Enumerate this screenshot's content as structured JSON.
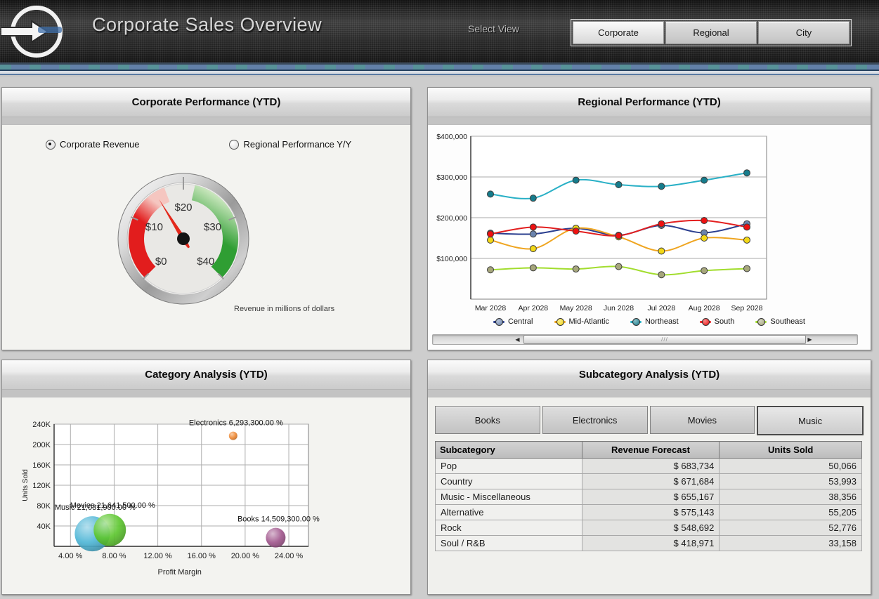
{
  "header": {
    "title": "Corporate Sales Overview",
    "select_view_label": "Select View",
    "view_buttons": [
      {
        "label": "Corporate",
        "selected": true
      },
      {
        "label": "Regional",
        "selected": false
      },
      {
        "label": "City",
        "selected": false
      }
    ]
  },
  "corporate_panel": {
    "title": "Corporate Performance (YTD)",
    "radios": [
      {
        "label": "Corporate Revenue",
        "selected": true
      },
      {
        "label": "Regional Performance Y/Y",
        "selected": false
      }
    ],
    "caption": "Revenue in millions of dollars"
  },
  "regional_panel": {
    "title": "Regional Performance (YTD)"
  },
  "category_panel": {
    "title": "Category Analysis (YTD)"
  },
  "subcategory_panel": {
    "title": "Subcategory Analysis (YTD)",
    "tabs": [
      {
        "label": "Books",
        "selected": false
      },
      {
        "label": "Electronics",
        "selected": false
      },
      {
        "label": "Movies",
        "selected": false
      },
      {
        "label": "Music",
        "selected": true
      }
    ],
    "table": {
      "columns": [
        "Subcategory",
        "Revenue Forecast",
        "Units Sold"
      ],
      "rows": [
        [
          "Pop",
          "$ 683,734",
          "50,066"
        ],
        [
          "Country",
          "$ 671,684",
          "53,993"
        ],
        [
          "Music - Miscellaneous",
          "$ 655,167",
          "38,356"
        ],
        [
          "Alternative",
          "$ 575,143",
          "55,205"
        ],
        [
          "Rock",
          "$ 548,692",
          "52,776"
        ],
        [
          "Soul / R&B",
          "$ 418,971",
          "33,158"
        ]
      ]
    }
  },
  "chart_data": [
    {
      "type": "gauge",
      "title": "Corporate Revenue",
      "min": 0,
      "max": 40,
      "value": 15.3,
      "tick_labels": [
        "$0",
        "$10",
        "$20",
        "$30",
        "$40"
      ],
      "red_zone": [
        0,
        14
      ],
      "green_zone": [
        23,
        40
      ],
      "caption": "Revenue in millions of dollars",
      "colors": {
        "red": "#e21d1d",
        "red_fade": "#f5c6c0",
        "green": "#2f9e33",
        "green_fade": "#d9eecb",
        "needle": "#e3291c"
      }
    },
    {
      "type": "line",
      "title": "Regional Performance (YTD)",
      "x": [
        "Mar 2028",
        "Apr 2028",
        "May 2028",
        "Jun 2028",
        "Jul 2028",
        "Aug 2028",
        "Sep 2028"
      ],
      "ylim": [
        0,
        400000
      ],
      "ytick_labels": [
        "$100,000",
        "$200,000",
        "$300,000",
        "$400,000"
      ],
      "ytick_values": [
        100000,
        200000,
        300000,
        400000
      ],
      "grid": "horizontal",
      "legend_position": "bottom",
      "series": [
        {
          "name": "Central",
          "line_color": "#2b3f8f",
          "marker_color": "#6a83ad",
          "values": [
            162000,
            160000,
            174000,
            157000,
            181000,
            163000,
            185000
          ]
        },
        {
          "name": "Mid-Atlantic",
          "line_color": "#efa520",
          "marker_color": "#f2d816",
          "values": [
            145000,
            124000,
            174000,
            153000,
            118000,
            150000,
            145000
          ]
        },
        {
          "name": "Northeast",
          "line_color": "#29b0c6",
          "marker_color": "#167c8c",
          "values": [
            258000,
            248000,
            292000,
            281000,
            277000,
            292000,
            310000
          ]
        },
        {
          "name": "South",
          "line_color": "#e31f1f",
          "marker_color": "#ee1111",
          "values": [
            160000,
            177000,
            167000,
            156000,
            185000,
            193000,
            177000
          ]
        },
        {
          "name": "Southeast",
          "line_color": "#a2dd2e",
          "marker_color": "#a6a67c",
          "values": [
            72000,
            77000,
            74000,
            80000,
            60000,
            70000,
            75000
          ]
        }
      ]
    },
    {
      "type": "bubble",
      "title": "Category Analysis (YTD)",
      "xlabel": "Profit Margin",
      "ylabel": "Units Sold",
      "xtick_labels": [
        "4.00 %",
        "8.00 %",
        "12.00 %",
        "16.00 %",
        "20.00 %",
        "24.00 %"
      ],
      "xtick_values": [
        4,
        8,
        12,
        16,
        20,
        24
      ],
      "ytick_labels": [
        "40K",
        "80K",
        "120K",
        "160K",
        "200K",
        "240K"
      ],
      "ytick_values": [
        40000,
        80000,
        120000,
        160000,
        200000,
        240000
      ],
      "xlim": [
        2.5,
        25.8
      ],
      "ylim": [
        0,
        240000
      ],
      "points": [
        {
          "name": "Music",
          "label": "Music 21,031,900.00 %",
          "x": 6.0,
          "y": 24600,
          "r": 25,
          "color": "#4fb6d6"
        },
        {
          "name": "Movies",
          "label": "Movies 21,641,500.00 %",
          "x": 7.6,
          "y": 32000,
          "r": 23,
          "color": "#5ec730"
        },
        {
          "name": "Electronics",
          "label": "Electronics 6,293,300.00 %",
          "x": 18.9,
          "y": 217000,
          "r": 6,
          "color": "#ef8933"
        },
        {
          "name": "Books",
          "label": "Books 14,509,300.00 %",
          "x": 22.8,
          "y": 17000,
          "r": 14,
          "color": "#a2588e"
        }
      ]
    }
  ]
}
